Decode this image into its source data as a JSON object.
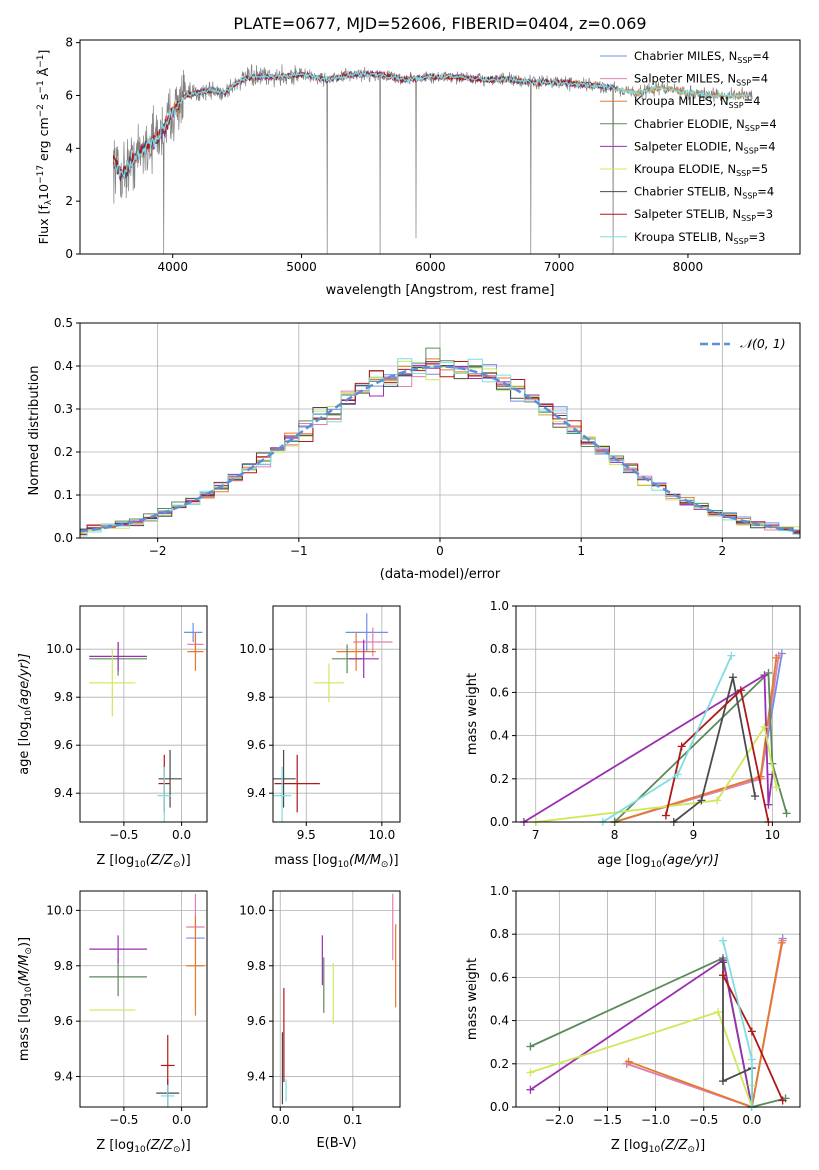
{
  "figure_title": "PLATE=0677, MJD=52606, FIBERID=0404, z=0.069",
  "colors": {
    "chabrier_miles": "#6f8fe8",
    "salpeter_miles": "#e27fb3",
    "kroupa_miles": "#e57a2a",
    "chabrier_elodie": "#5a8a5a",
    "salpeter_elodie": "#9a2fb0",
    "kroupa_elodie": "#cfe85a",
    "chabrier_stelib": "#4a4a4a",
    "salpeter_stelib": "#b01818",
    "kroupa_stelib": "#7fdde0",
    "data": "#808080",
    "gauss": "#5b8fd6",
    "grid": "#b0b0b0"
  },
  "chart_data": [
    {
      "id": "spectrum",
      "type": "line",
      "xlabel": "wavelength [Angstrom, rest frame]",
      "ylabel": "Flux [f",
      "ylabel_sub": "λ",
      "ylabel_rest": "10",
      "ylabel_exp": "−17",
      "ylabel_units": "erg cm",
      "xlim": [
        3280,
        8870
      ],
      "ylim": [
        0,
        8.1
      ],
      "xticks": [
        4000,
        5000,
        6000,
        7000,
        8000
      ],
      "yticks": [
        0,
        2,
        4,
        6,
        8
      ],
      "grid": false,
      "legend_position": "right",
      "legend": [
        {
          "name": "Chabrier MILES, N",
          "n": "4"
        },
        {
          "name": "Salpeter MILES, N",
          "n": "4"
        },
        {
          "name": "Kroupa MILES, N",
          "n": "4"
        },
        {
          "name": "Chabrier ELODIE, N",
          "n": "4"
        },
        {
          "name": "Salpeter ELODIE, N",
          "n": "4"
        },
        {
          "name": "Kroupa ELODIE, N",
          "n": "5"
        },
        {
          "name": "Chabrier STELIB, N",
          "n": "4"
        },
        {
          "name": "Salpeter STELIB, N",
          "n": "3"
        },
        {
          "name": "Kroupa STELIB, N",
          "n": "3"
        }
      ],
      "legend_sub": "SSP",
      "continuum": {
        "x": [
          3540,
          3600,
          3700,
          3800,
          3900,
          3950,
          4000,
          4100,
          4200,
          4300,
          4400,
          4500,
          4600,
          4800,
          5000,
          5200,
          5400,
          5600,
          5800,
          6000,
          6200,
          6400,
          6600,
          6800,
          7000,
          7200,
          7400,
          7600,
          7800,
          8000,
          8200,
          8400,
          8500
        ],
        "y": [
          3.5,
          3.0,
          3.6,
          4.1,
          4.5,
          4.9,
          5.4,
          6.0,
          6.1,
          6.2,
          6.1,
          6.5,
          6.7,
          6.7,
          6.8,
          6.6,
          6.8,
          6.8,
          6.6,
          6.7,
          6.7,
          6.6,
          6.6,
          6.5,
          6.5,
          6.4,
          6.3,
          6.1,
          6.3,
          6.1,
          6.0,
          6.0,
          6.0
        ]
      },
      "absorption_lines": [
        {
          "x": 3930,
          "y": 0.0
        },
        {
          "x": 5200,
          "y": 0.0
        },
        {
          "x": 5610,
          "y": 0.0
        },
        {
          "x": 5890,
          "y": 0.6
        },
        {
          "x": 6780,
          "y": 0.0
        },
        {
          "x": 7420,
          "y": 0.0
        }
      ]
    },
    {
      "id": "residuals",
      "type": "line",
      "xlabel": "(data-model)/error",
      "ylabel": "Normed distribution",
      "xlim": [
        -2.55,
        2.55
      ],
      "ylim": [
        0,
        0.5
      ],
      "xticks": [
        -2,
        -1,
        0,
        1,
        2
      ],
      "yticks": [
        0.0,
        0.1,
        0.2,
        0.3,
        0.4,
        0.5
      ],
      "grid": true,
      "legend_label": "𝒩(0, 1)",
      "legend_position": "top-right",
      "bin_width": 0.1
    },
    {
      "id": "age_vs_Z",
      "type": "scatter",
      "xlabel": "Z [log",
      "xlabel_math": "(Z/Z",
      "ylabel": "age  [log",
      "ylabel_math": "(age/yr)]",
      "xlim": [
        -0.88,
        0.22
      ],
      "ylim": [
        9.28,
        10.18
      ],
      "xticks": [
        -0.5,
        0.0
      ],
      "yticks": [
        9.4,
        9.6,
        9.8,
        10.0
      ],
      "grid": true,
      "points": [
        {
          "series": "chabrier_miles",
          "x": 0.1,
          "y": 10.07,
          "xerr": 0.08,
          "yerr": 0.04
        },
        {
          "series": "salpeter_miles",
          "x": 0.12,
          "y": 10.02,
          "xerr": 0.07,
          "yerr": 0.04
        },
        {
          "series": "kroupa_miles",
          "x": 0.12,
          "y": 9.99,
          "xerr": 0.07,
          "yerr": 0.08
        },
        {
          "series": "chabrier_elodie",
          "x": -0.55,
          "y": 9.96,
          "xerr": 0.25,
          "yerr": 0.07
        },
        {
          "series": "salpeter_elodie",
          "x": -0.55,
          "y": 9.97,
          "xerr": 0.25,
          "yerr": 0.06
        },
        {
          "series": "kroupa_elodie",
          "x": -0.6,
          "y": 9.86,
          "xerr": 0.2,
          "yerr": 0.14
        },
        {
          "series": "chabrier_stelib",
          "x": -0.1,
          "y": 9.46,
          "xerr": 0.1,
          "yerr": 0.12
        },
        {
          "series": "salpeter_stelib",
          "x": -0.15,
          "y": 9.44,
          "xerr": 0.05,
          "yerr": 0.12
        },
        {
          "series": "kroupa_stelib",
          "x": -0.15,
          "y": 9.39,
          "xerr": 0.06,
          "yerr": 0.12
        }
      ]
    },
    {
      "id": "age_vs_mass",
      "type": "scatter",
      "xlabel": "mass [log",
      "xlabel_math": "(M/M",
      "xlim": [
        9.28,
        10.12
      ],
      "ylim": [
        9.28,
        10.18
      ],
      "xticks": [
        9.5,
        10.0
      ],
      "yticks": [
        9.4,
        9.6,
        9.8,
        10.0
      ],
      "grid": true,
      "points": [
        {
          "series": "chabrier_miles",
          "x": 9.9,
          "y": 10.07,
          "xerr": 0.14,
          "yerr": 0.08
        },
        {
          "series": "salpeter_miles",
          "x": 9.94,
          "y": 10.03,
          "xerr": 0.13,
          "yerr": 0.06
        },
        {
          "series": "kroupa_miles",
          "x": 9.83,
          "y": 9.99,
          "xerr": 0.13,
          "yerr": 0.08
        },
        {
          "series": "chabrier_elodie",
          "x": 9.77,
          "y": 9.96,
          "xerr": 0.1,
          "yerr": 0.06
        },
        {
          "series": "salpeter_elodie",
          "x": 9.88,
          "y": 9.96,
          "xerr": 0.1,
          "yerr": 0.08
        },
        {
          "series": "kroupa_elodie",
          "x": 9.65,
          "y": 9.86,
          "xerr": 0.1,
          "yerr": 0.08
        },
        {
          "series": "chabrier_stelib",
          "x": 9.35,
          "y": 9.46,
          "xerr": 0.08,
          "yerr": 0.12
        },
        {
          "series": "salpeter_stelib",
          "x": 9.44,
          "y": 9.44,
          "xerr": 0.15,
          "yerr": 0.12
        },
        {
          "series": "kroupa_stelib",
          "x": 9.34,
          "y": 9.39,
          "xerr": 0.06,
          "yerr": 0.12
        }
      ]
    },
    {
      "id": "weight_vs_age",
      "type": "line",
      "xlabel": "age  [log",
      "xlabel_math": "(age/yr)]",
      "ylabel": "mass weight",
      "xlim": [
        6.75,
        10.35
      ],
      "ylim": [
        0,
        1.0
      ],
      "xticks": [
        7,
        8,
        9,
        10
      ],
      "yticks": [
        0.0,
        0.2,
        0.4,
        0.6,
        0.8,
        1.0
      ],
      "grid": true,
      "series": [
        {
          "key": "chabrier_miles",
          "x": [
            8.0,
            9.85,
            10.12
          ],
          "y": [
            0.0,
            0.2,
            0.78
          ]
        },
        {
          "key": "salpeter_miles",
          "x": [
            8.0,
            9.85,
            10.08
          ],
          "y": [
            0.0,
            0.2,
            0.77
          ]
        },
        {
          "key": "kroupa_miles",
          "x": [
            8.0,
            9.85,
            10.05
          ],
          "y": [
            0.0,
            0.21,
            0.76
          ]
        },
        {
          "key": "chabrier_elodie",
          "x": [
            8.0,
            9.95,
            10.0,
            10.18
          ],
          "y": [
            0.0,
            0.69,
            0.27,
            0.04
          ]
        },
        {
          "key": "salpeter_elodie",
          "x": [
            6.85,
            9.9,
            9.95,
            10.0
          ],
          "y": [
            0.0,
            0.68,
            0.08,
            0.22
          ]
        },
        {
          "key": "kroupa_elodie",
          "x": [
            7.0,
            9.3,
            9.9,
            10.05
          ],
          "y": [
            0.0,
            0.1,
            0.44,
            0.16
          ]
        },
        {
          "key": "chabrier_stelib",
          "x": [
            8.75,
            9.1,
            9.5,
            9.78
          ],
          "y": [
            0.0,
            0.1,
            0.67,
            0.12
          ]
        },
        {
          "key": "salpeter_stelib",
          "x": [
            8.65,
            8.85,
            9.6,
            9.95
          ],
          "y": [
            0.03,
            0.35,
            0.61,
            0.0
          ]
        },
        {
          "key": "kroupa_stelib",
          "x": [
            7.85,
            8.8,
            9.48
          ],
          "y": [
            0.0,
            0.22,
            0.77
          ]
        }
      ]
    },
    {
      "id": "mass_vs_Z",
      "type": "scatter",
      "xlabel": "Z [log",
      "xlabel_math": "(Z/Z",
      "ylabel": "mass [log",
      "ylabel_math": "(M/M",
      "xlim": [
        -0.88,
        0.22
      ],
      "ylim": [
        9.29,
        10.07
      ],
      "xticks": [
        -0.5,
        0.0
      ],
      "yticks": [
        9.4,
        9.6,
        9.8,
        10.0
      ],
      "grid": true,
      "points": [
        {
          "series": "chabrier_miles",
          "x": 0.12,
          "y": 9.9,
          "xerr": 0.08,
          "yerr": 0.0
        },
        {
          "series": "salpeter_miles",
          "x": 0.12,
          "y": 9.94,
          "xerr": 0.08,
          "yerr": 0.12
        },
        {
          "series": "kroupa_miles",
          "x": 0.12,
          "y": 9.8,
          "xerr": 0.08,
          "yerr": 0.18
        },
        {
          "series": "chabrier_elodie",
          "x": -0.55,
          "y": 9.76,
          "xerr": 0.25,
          "yerr": 0.07
        },
        {
          "series": "salpeter_elodie",
          "x": -0.55,
          "y": 9.86,
          "xerr": 0.25,
          "yerr": 0.05
        },
        {
          "series": "kroupa_elodie",
          "x": -0.6,
          "y": 9.64,
          "xerr": 0.2,
          "yerr": 0.0
        },
        {
          "series": "chabrier_stelib",
          "x": -0.12,
          "y": 9.34,
          "xerr": 0.1,
          "yerr": 0.05
        },
        {
          "series": "salpeter_stelib",
          "x": -0.12,
          "y": 9.44,
          "xerr": 0.06,
          "yerr": 0.11
        },
        {
          "series": "kroupa_stelib",
          "x": -0.12,
          "y": 9.33,
          "xerr": 0.06,
          "yerr": 0.04
        }
      ]
    },
    {
      "id": "mass_vs_ebv",
      "type": "scatter",
      "xlabel": "E(B-V)",
      "xlim": [
        -0.01,
        0.165
      ],
      "ylim": [
        9.29,
        10.07
      ],
      "xticks": [
        0.0,
        0.1
      ],
      "yticks": [
        9.4,
        9.6,
        9.8,
        10.0
      ],
      "grid": true,
      "points": [
        {
          "series": "chabrier_miles",
          "x": 0.157,
          "y": 9.9,
          "xerr": 0,
          "yerr": 0.0
        },
        {
          "series": "salpeter_miles",
          "x": 0.155,
          "y": 9.94,
          "xerr": 0,
          "yerr": 0.12
        },
        {
          "series": "kroupa_miles",
          "x": 0.159,
          "y": 9.8,
          "xerr": 0,
          "yerr": 0.15
        },
        {
          "series": "chabrier_elodie",
          "x": 0.06,
          "y": 9.73,
          "xerr": 0,
          "yerr": 0.1
        },
        {
          "series": "salpeter_elodie",
          "x": 0.058,
          "y": 9.82,
          "xerr": 0,
          "yerr": 0.09
        },
        {
          "series": "kroupa_elodie",
          "x": 0.073,
          "y": 9.7,
          "xerr": 0,
          "yerr": 0.11
        },
        {
          "series": "chabrier_stelib",
          "x": 0.003,
          "y": 9.43,
          "xerr": 0,
          "yerr": 0.13
        },
        {
          "series": "salpeter_stelib",
          "x": 0.005,
          "y": 9.55,
          "xerr": 0,
          "yerr": 0.17
        },
        {
          "series": "kroupa_stelib",
          "x": 0.008,
          "y": 9.35,
          "xerr": 0,
          "yerr": 0.04
        }
      ]
    },
    {
      "id": "weight_vs_Z",
      "type": "line",
      "xlabel": "Z [log",
      "xlabel_math": "(Z/Z",
      "ylabel": "mass weight",
      "xlim": [
        -2.45,
        0.5
      ],
      "ylim": [
        0,
        1.0
      ],
      "xticks": [
        -2.0,
        -1.5,
        -1.0,
        -0.5,
        0.0
      ],
      "yticks": [
        0.0,
        0.2,
        0.4,
        0.6,
        0.8,
        1.0
      ],
      "grid": true,
      "series": [
        {
          "key": "chabrier_miles",
          "x": [
            -1.3,
            0.0,
            0.32
          ],
          "y": [
            0.2,
            0.0,
            0.78
          ]
        },
        {
          "key": "salpeter_miles",
          "x": [
            -1.3,
            0.0,
            0.32
          ],
          "y": [
            0.2,
            0.0,
            0.77
          ]
        },
        {
          "key": "kroupa_miles",
          "x": [
            -1.28,
            0.0,
            0.31
          ],
          "y": [
            0.21,
            0.0,
            0.76
          ]
        },
        {
          "key": "chabrier_elodie",
          "x": [
            -2.3,
            -0.3,
            0.0,
            0.35
          ],
          "y": [
            0.28,
            0.69,
            0.0,
            0.04
          ]
        },
        {
          "key": "salpeter_elodie",
          "x": [
            -2.3,
            -0.3,
            -0.3,
            0.0
          ],
          "y": [
            0.08,
            0.68,
            0.68,
            0.0
          ]
        },
        {
          "key": "kroupa_elodie",
          "x": [
            -2.3,
            -0.35,
            0.0,
            0.0
          ],
          "y": [
            0.16,
            0.44,
            0.0,
            0.1
          ]
        },
        {
          "key": "chabrier_stelib",
          "x": [
            -0.3,
            -0.3,
            0.0,
            0.0
          ],
          "y": [
            0.67,
            0.12,
            0.18,
            0.0
          ]
        },
        {
          "key": "salpeter_stelib",
          "x": [
            -0.3,
            0.0,
            0.32
          ],
          "y": [
            0.61,
            0.35,
            0.03
          ]
        },
        {
          "key": "kroupa_stelib",
          "x": [
            -0.3,
            0.0,
            0.0
          ],
          "y": [
            0.77,
            0.22,
            0.0
          ]
        }
      ]
    }
  ]
}
